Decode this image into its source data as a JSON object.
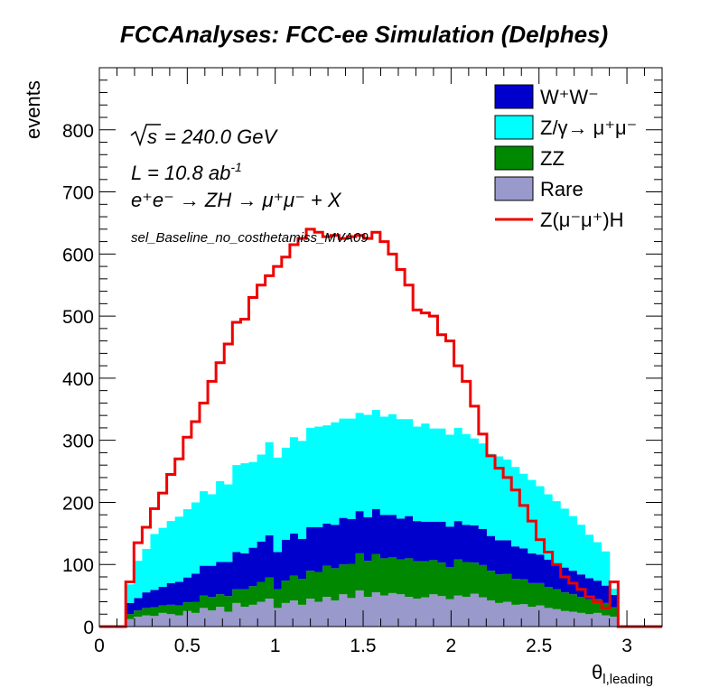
{
  "chart_data": {
    "type": "area",
    "title": "FCCAnalyses: FCC-ee Simulation (Delphes)",
    "xlabel": "θ_l,leading",
    "ylabel": "events",
    "xlim": [
      0,
      3.2
    ],
    "ylim": [
      0,
      900
    ],
    "grid": false,
    "legend_position": "top-right",
    "x_ticks": [
      0,
      0.5,
      1,
      1.5,
      2,
      2.5,
      3
    ],
    "x_tick_labels": [
      "0",
      "0.5",
      "1",
      "1.5",
      "2",
      "2.5",
      "3"
    ],
    "y_ticks": [
      0,
      100,
      200,
      300,
      400,
      500,
      600,
      700,
      800
    ],
    "y_tick_labels": [
      "0",
      "100",
      "200",
      "300",
      "400",
      "500",
      "600",
      "700",
      "800"
    ],
    "annotations": {
      "sqrt_s": "= 240.0 GeV",
      "lumi": "L = 10.8 ab",
      "lumi_exp": "-1",
      "process": "e⁺e⁻ → ZH → μ⁺μ⁻ + X",
      "selection": "sel_Baseline_no_costhetamiss_MVA09"
    },
    "bin_start": 0.15,
    "bin_end": 2.95,
    "series": [
      {
        "name": "Rare",
        "style": "stacked-fill",
        "color": "#9999cc",
        "values": [
          12,
          16,
          18,
          17,
          22,
          20,
          18,
          25,
          22,
          30,
          26,
          32,
          24,
          38,
          32,
          35,
          40,
          45,
          30,
          38,
          42,
          35,
          45,
          40,
          48,
          42,
          52,
          46,
          58,
          48,
          55,
          50,
          54,
          52,
          48,
          45,
          47,
          52,
          49,
          44,
          50,
          48,
          53,
          47,
          42,
          38,
          40,
          35,
          36,
          32,
          34,
          30,
          28,
          25,
          24,
          22,
          20,
          22,
          18,
          16
        ]
      },
      {
        "name": "ZZ",
        "style": "stacked-fill",
        "color": "#008800",
        "values": [
          8,
          10,
          12,
          14,
          12,
          15,
          16,
          14,
          18,
          20,
          22,
          20,
          25,
          22,
          28,
          30,
          32,
          34,
          30,
          36,
          40,
          42,
          45,
          48,
          50,
          52,
          48,
          55,
          60,
          58,
          62,
          60,
          58,
          56,
          62,
          60,
          58,
          55,
          54,
          52,
          58,
          56,
          50,
          52,
          48,
          46,
          45,
          42,
          40,
          38,
          36,
          34,
          32,
          30,
          28,
          26,
          24,
          22,
          20,
          15
        ]
      },
      {
        "name": "W⁺W⁻",
        "style": "stacked-fill",
        "color": "#0000cc",
        "values": [
          18,
          20,
          25,
          28,
          30,
          35,
          38,
          40,
          45,
          48,
          50,
          52,
          55,
          60,
          58,
          62,
          65,
          68,
          60,
          66,
          68,
          64,
          70,
          72,
          68,
          70,
          75,
          72,
          68,
          70,
          72,
          70,
          68,
          66,
          68,
          65,
          64,
          62,
          66,
          65,
          62,
          60,
          60,
          58,
          56,
          55,
          54,
          52,
          50,
          48,
          46,
          44,
          42,
          40,
          38,
          36,
          34,
          30,
          28,
          20
        ]
      },
      {
        "name": "Z/γ→ μ⁺μ⁻",
        "style": "stacked-fill",
        "color": "#00ffff",
        "values": [
          30,
          60,
          70,
          90,
          95,
          100,
          105,
          110,
          115,
          120,
          115,
          130,
          125,
          140,
          145,
          138,
          140,
          150,
          152,
          148,
          155,
          158,
          160,
          162,
          158,
          165,
          160,
          162,
          158,
          165,
          160,
          158,
          162,
          160,
          156,
          152,
          158,
          150,
          150,
          148,
          150,
          146,
          140,
          138,
          132,
          135,
          130,
          128,
          120,
          118,
          110,
          105,
          100,
          95,
          88,
          80,
          70,
          62,
          55,
          10
        ]
      },
      {
        "name": "Z(μ⁻μ⁺)H",
        "style": "step-line",
        "color": "#ee0000",
        "values": [
          72,
          135,
          160,
          190,
          215,
          245,
          270,
          305,
          330,
          360,
          395,
          425,
          455,
          490,
          495,
          530,
          550,
          565,
          580,
          595,
          615,
          625,
          640,
          635,
          628,
          630,
          625,
          628,
          630,
          625,
          635,
          620,
          600,
          575,
          550,
          510,
          505,
          500,
          470,
          460,
          420,
          395,
          355,
          310,
          275,
          255,
          240,
          220,
          195,
          170,
          140,
          120,
          100,
          80,
          70,
          60,
          48,
          40,
          30,
          72
        ]
      }
    ]
  }
}
